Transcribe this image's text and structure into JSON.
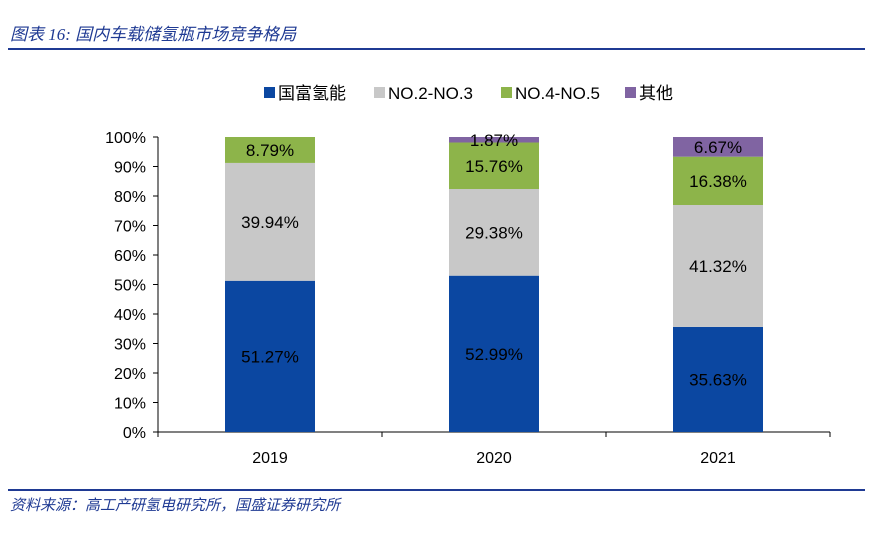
{
  "figure_title": "图表 16:  国内车载储氢瓶市场竞争格局",
  "source": "资料来源：高工产研氢电研究所，国盛证券研究所",
  "colors": {
    "accent": "#1f3a93"
  },
  "chart_data": {
    "type": "bar",
    "stacked": true,
    "percent": true,
    "title": "",
    "xlabel": "",
    "ylabel": "",
    "ylim": [
      0,
      100
    ],
    "yticks": [
      "0%",
      "10%",
      "20%",
      "30%",
      "40%",
      "50%",
      "60%",
      "70%",
      "80%",
      "90%",
      "100%"
    ],
    "legend_position": "top",
    "categories": [
      "2019",
      "2020",
      "2021"
    ],
    "series": [
      {
        "name": "国富氢能",
        "color": "#0b47a1",
        "values": [
          51.27,
          52.99,
          35.63
        ],
        "labels": [
          "51.27%",
          "52.99%",
          "35.63%"
        ]
      },
      {
        "name": "NO.2-NO.3",
        "color": "#c8c8c8",
        "values": [
          39.94,
          29.38,
          41.32
        ],
        "labels": [
          "39.94%",
          "29.38%",
          "41.32%"
        ]
      },
      {
        "name": "NO.4-NO.5",
        "color": "#8db44a",
        "values": [
          8.79,
          15.76,
          16.38
        ],
        "labels": [
          "8.79%",
          "15.76%",
          "16.38%"
        ]
      },
      {
        "name": "其他",
        "color": "#8064a2",
        "values": [
          0,
          1.87,
          6.67
        ],
        "labels": [
          "",
          "1.87%",
          "6.67%"
        ]
      }
    ]
  }
}
